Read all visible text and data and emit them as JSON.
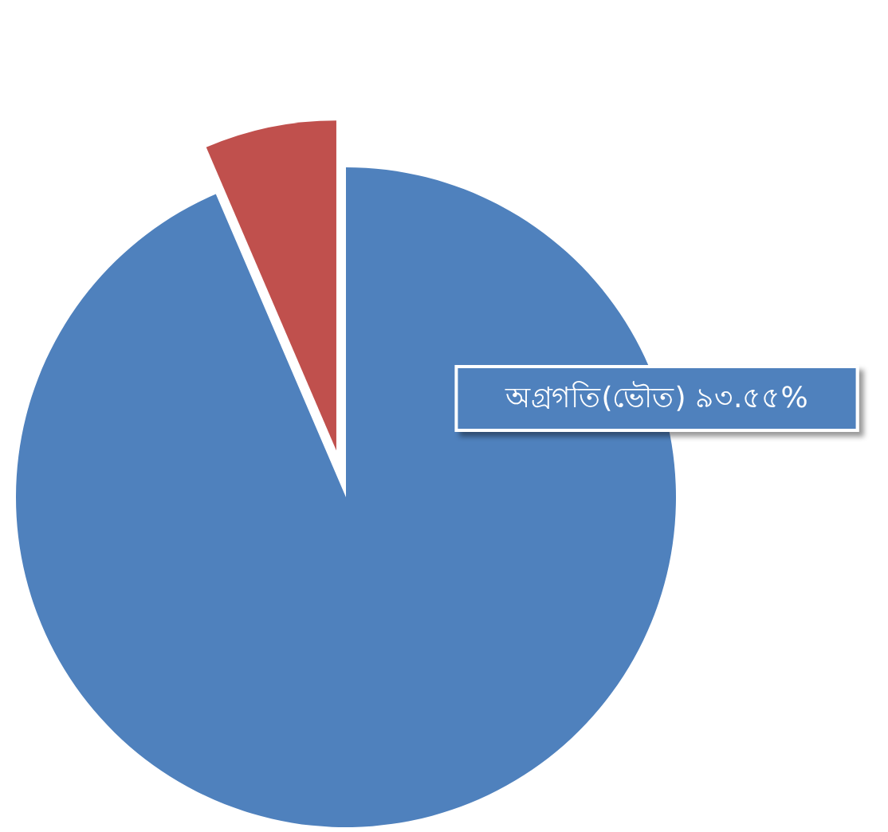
{
  "chart_data": {
    "type": "pie",
    "categories": [
      "অগ্রগতি(ভৌত)",
      null
    ],
    "values": [
      93.55,
      6.45
    ],
    "colors": [
      "#4f81bd",
      "#c0504d"
    ],
    "value_labels": [
      "৯৩.৫৫%",
      null
    ],
    "legend": false
  }
}
